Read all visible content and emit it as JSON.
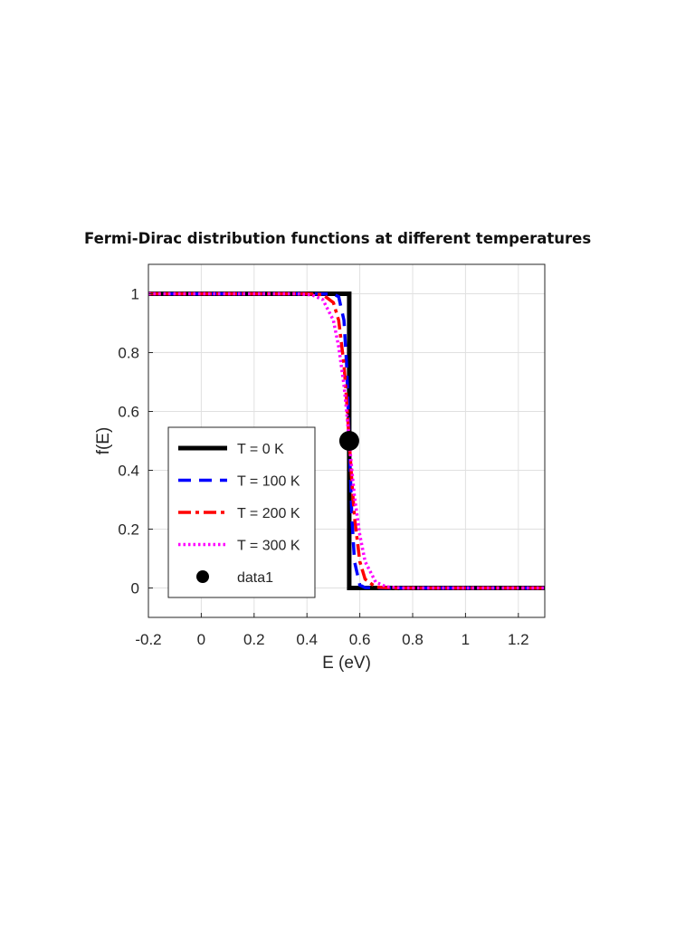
{
  "title": "Fermi-Dirac distribution functions at different temperatures",
  "chart_data": {
    "type": "line",
    "title": "Fermi-Dirac distribution functions at different temperatures",
    "xlabel": "E (eV)",
    "ylabel": "f(E)",
    "xlim": [
      -0.2,
      1.3
    ],
    "ylim": [
      -0.1,
      1.1
    ],
    "xticks": [
      -0.2,
      0,
      0.2,
      0.4,
      0.6,
      0.8,
      1,
      1.2
    ],
    "xtick_labels": [
      "-0.2",
      "0",
      "0.2",
      "0.4",
      "0.6",
      "0.8",
      "1",
      "1.2"
    ],
    "yticks": [
      0,
      0.2,
      0.4,
      0.6,
      0.8,
      1
    ],
    "ytick_labels": [
      "0",
      "0.2",
      "0.4",
      "0.6",
      "0.8",
      "1"
    ],
    "grid": true,
    "legend_position": "lower-left",
    "fermi_level_eV": 0.56,
    "series": [
      {
        "name": "T = 0 K",
        "color": "#000000",
        "style": "solid",
        "x": [
          -0.2,
          0.56,
          0.56,
          1.3
        ],
        "y": [
          1,
          1,
          0,
          0
        ]
      },
      {
        "name": "T = 100 K",
        "color": "#0000ff",
        "style": "dashed",
        "x": [
          -0.2,
          0.4,
          0.5,
          0.52,
          0.54,
          0.55,
          0.56,
          0.57,
          0.58,
          0.6,
          0.62,
          0.7,
          1.3
        ],
        "y": [
          1,
          1,
          0.999,
          0.99,
          0.91,
          0.76,
          0.5,
          0.24,
          0.09,
          0.01,
          0.001,
          0,
          0
        ]
      },
      {
        "name": "T = 200 K",
        "color": "#ff0000",
        "style": "dash-dot",
        "x": [
          -0.2,
          0.4,
          0.46,
          0.5,
          0.52,
          0.54,
          0.55,
          0.56,
          0.57,
          0.58,
          0.6,
          0.62,
          0.66,
          0.72,
          1.3
        ],
        "y": [
          1,
          1,
          0.997,
          0.97,
          0.91,
          0.76,
          0.64,
          0.5,
          0.36,
          0.24,
          0.09,
          0.03,
          0.003,
          0,
          0
        ]
      },
      {
        "name": "T = 300 K",
        "color": "#ff00ff",
        "style": "dotted",
        "x": [
          -0.2,
          0.36,
          0.42,
          0.46,
          0.5,
          0.52,
          0.54,
          0.55,
          0.56,
          0.57,
          0.58,
          0.6,
          0.62,
          0.66,
          0.7,
          0.76,
          1.3
        ],
        "y": [
          1,
          1,
          0.996,
          0.98,
          0.91,
          0.82,
          0.69,
          0.6,
          0.5,
          0.4,
          0.31,
          0.18,
          0.09,
          0.02,
          0.004,
          0,
          0
        ]
      },
      {
        "name": "data1",
        "color": "#000000",
        "style": "marker",
        "x": [
          0.56
        ],
        "y": [
          0.5
        ]
      }
    ]
  }
}
